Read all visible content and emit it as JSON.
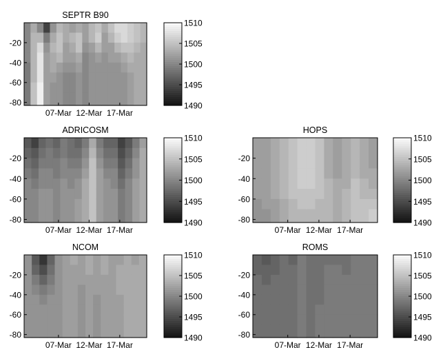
{
  "chart_data": [
    {
      "type": "heatmap",
      "title": "SEPTR B90",
      "xlabel": "",
      "ylabel": "",
      "x_ticks": [
        "07-Mar",
        "12-Mar",
        "17-Mar"
      ],
      "y_ticks": [
        -20,
        -40,
        -60,
        -80
      ],
      "ylim": [
        -83,
        0
      ],
      "colorbar": {
        "min": 1490,
        "max": 1510,
        "ticks": [
          1510,
          1505,
          1500,
          1495,
          1490
        ]
      },
      "depth_levels": [
        -5,
        -15,
        -25,
        -35,
        -45,
        -55,
        -65,
        -75
      ],
      "columns": [
        [
          1500,
          1500,
          1500,
          1500,
          1499,
          1499,
          1499,
          1499
        ],
        [
          1503,
          1504,
          1504,
          1504,
          1504,
          1504,
          1505,
          1505
        ],
        [
          1500,
          1504,
          1507,
          1508,
          1508,
          1508,
          1509,
          1509
        ],
        [
          1494,
          1499,
          1501,
          1502,
          1502,
          1502,
          1502,
          1502
        ],
        [
          1501,
          1503,
          1504,
          1503,
          1503,
          1502,
          1501,
          1501
        ],
        [
          1504,
          1505,
          1505,
          1504,
          1502,
          1501,
          1501,
          1501
        ],
        [
          1503,
          1503,
          1502,
          1502,
          1501,
          1500,
          1500,
          1500
        ],
        [
          1502,
          1504,
          1503,
          1502,
          1501,
          1500,
          1500,
          1500
        ],
        [
          1503,
          1505,
          1505,
          1503,
          1502,
          1501,
          1501,
          1501
        ],
        [
          1502,
          1502,
          1501,
          1500,
          1500,
          1500,
          1500,
          1500
        ],
        [
          1504,
          1504,
          1502,
          1501,
          1501,
          1501,
          1501,
          1501
        ],
        [
          1505,
          1506,
          1504,
          1502,
          1501,
          1501,
          1501,
          1501
        ],
        [
          1503,
          1502,
          1502,
          1501,
          1501,
          1501,
          1501,
          1501
        ],
        [
          1505,
          1504,
          1502,
          1502,
          1501,
          1501,
          1501,
          1501
        ],
        [
          1507,
          1506,
          1504,
          1502,
          1501,
          1501,
          1501,
          1501
        ],
        [
          1507,
          1507,
          1505,
          1503,
          1502,
          1501,
          1501,
          1501
        ],
        [
          1506,
          1506,
          1505,
          1504,
          1503,
          1502,
          1502,
          1502
        ],
        [
          1505,
          1505,
          1504,
          1503,
          1503,
          1503,
          1503,
          1503
        ],
        [
          1504,
          1504,
          1503,
          1503,
          1503,
          1503,
          1503,
          1503
        ]
      ]
    },
    {
      "type": "heatmap",
      "title": "ADRICOSM",
      "xlabel": "",
      "ylabel": "",
      "x_ticks": [
        "07-Mar",
        "12-Mar",
        "17-Mar"
      ],
      "y_ticks": [
        -20,
        -40,
        -60,
        -80
      ],
      "ylim": [
        -83,
        0
      ],
      "colorbar": {
        "min": 1490,
        "max": 1510,
        "ticks": [
          1510,
          1505,
          1500,
          1495,
          1490
        ]
      },
      "depth_levels": [
        -5,
        -15,
        -25,
        -35,
        -45,
        -55,
        -65,
        -75
      ],
      "columns": [
        [
          1496,
          1497,
          1498,
          1499,
          1500,
          1500,
          1500,
          1500
        ],
        [
          1494,
          1496,
          1497,
          1498,
          1499,
          1500,
          1500,
          1500
        ],
        [
          1497,
          1498,
          1499,
          1500,
          1500,
          1501,
          1501,
          1501
        ],
        [
          1498,
          1499,
          1499,
          1500,
          1500,
          1501,
          1501,
          1501
        ],
        [
          1497,
          1498,
          1499,
          1499,
          1500,
          1500,
          1500,
          1500
        ],
        [
          1499,
          1499,
          1500,
          1500,
          1501,
          1501,
          1501,
          1501
        ],
        [
          1498,
          1498,
          1499,
          1500,
          1500,
          1501,
          1501,
          1501
        ],
        [
          1497,
          1498,
          1499,
          1500,
          1501,
          1501,
          1502,
          1502
        ],
        [
          1499,
          1500,
          1501,
          1502,
          1503,
          1503,
          1503,
          1503
        ],
        [
          1503,
          1504,
          1505,
          1505,
          1505,
          1505,
          1505,
          1505
        ],
        [
          1499,
          1500,
          1501,
          1502,
          1502,
          1502,
          1502,
          1502
        ],
        [
          1497,
          1498,
          1499,
          1500,
          1501,
          1501,
          1501,
          1501
        ],
        [
          1497,
          1498,
          1499,
          1500,
          1500,
          1501,
          1501,
          1501
        ],
        [
          1494,
          1495,
          1496,
          1497,
          1498,
          1499,
          1499,
          1499
        ],
        [
          1496,
          1497,
          1498,
          1499,
          1500,
          1500,
          1500,
          1500
        ],
        [
          1499,
          1500,
          1501,
          1501,
          1502,
          1502,
          1502,
          1502
        ],
        [
          1502,
          1503,
          1503,
          1503,
          1503,
          1503,
          1503,
          1503
        ]
      ]
    },
    {
      "type": "heatmap",
      "title": "HOPS",
      "xlabel": "",
      "ylabel": "",
      "x_ticks": [
        "07-Mar",
        "12-Mar",
        "17-Mar"
      ],
      "y_ticks": [
        -20,
        -40,
        -60,
        -80
      ],
      "ylim": [
        -83,
        0
      ],
      "colorbar": {
        "min": 1490,
        "max": 1510,
        "ticks": [
          1510,
          1505,
          1500,
          1495,
          1490
        ]
      },
      "depth_levels": [
        -5,
        -15,
        -25,
        -35,
        -45,
        -55,
        -65,
        -75
      ],
      "columns": [
        [
          1502,
          1502,
          1502,
          1502,
          1502,
          1502,
          1501,
          1501
        ],
        [
          1502,
          1502,
          1502,
          1502,
          1502,
          1502,
          1502,
          1501
        ],
        [
          1503,
          1503,
          1503,
          1503,
          1503,
          1503,
          1502,
          1502
        ],
        [
          1504,
          1504,
          1504,
          1504,
          1504,
          1504,
          1503,
          1503
        ],
        [
          1505,
          1505,
          1505,
          1505,
          1505,
          1505,
          1504,
          1504
        ],
        [
          1506,
          1506,
          1506,
          1506,
          1506,
          1505,
          1505,
          1504
        ],
        [
          1506,
          1506,
          1506,
          1506,
          1506,
          1505,
          1505,
          1504
        ],
        [
          1505,
          1505,
          1505,
          1505,
          1505,
          1505,
          1504,
          1504
        ],
        [
          1503,
          1503,
          1503,
          1503,
          1504,
          1504,
          1504,
          1504
        ],
        [
          1502,
          1502,
          1502,
          1502,
          1503,
          1503,
          1503,
          1503
        ],
        [
          1503,
          1503,
          1503,
          1503,
          1503,
          1504,
          1504,
          1504
        ],
        [
          1504,
          1504,
          1504,
          1504,
          1505,
          1505,
          1505,
          1505
        ],
        [
          1503,
          1503,
          1503,
          1503,
          1504,
          1504,
          1505,
          1505
        ],
        [
          1502,
          1502,
          1502,
          1503,
          1503,
          1504,
          1505,
          1506
        ]
      ]
    },
    {
      "type": "heatmap",
      "title": "NCOM",
      "xlabel": "",
      "ylabel": "",
      "x_ticks": [
        "07-Mar",
        "12-Mar",
        "17-Mar"
      ],
      "y_ticks": [
        -20,
        -40,
        -60,
        -80
      ],
      "ylim": [
        -83,
        0
      ],
      "colorbar": {
        "min": 1490,
        "max": 1510,
        "ticks": [
          1510,
          1505,
          1500,
          1495,
          1490
        ]
      },
      "depth_levels": [
        -5,
        -15,
        -25,
        -35,
        -45,
        -55,
        -65,
        -75
      ],
      "columns": [
        [
          1501,
          1501,
          1501,
          1501,
          1501,
          1501,
          1501,
          1501
        ],
        [
          1496,
          1497,
          1499,
          1500,
          1501,
          1501,
          1501,
          1501
        ],
        [
          1493,
          1495,
          1497,
          1499,
          1500,
          1501,
          1501,
          1501
        ],
        [
          1497,
          1498,
          1499,
          1500,
          1501,
          1501,
          1501,
          1501
        ],
        [
          1501,
          1501,
          1501,
          1501,
          1501,
          1501,
          1501,
          1501
        ],
        [
          1502,
          1502,
          1502,
          1502,
          1502,
          1502,
          1502,
          1502
        ],
        [
          1503,
          1502,
          1502,
          1502,
          1502,
          1502,
          1502,
          1502
        ],
        [
          1502,
          1502,
          1502,
          1501,
          1501,
          1501,
          1501,
          1501
        ],
        [
          1503,
          1503,
          1502,
          1502,
          1502,
          1502,
          1502,
          1502
        ],
        [
          1502,
          1502,
          1502,
          1502,
          1501,
          1501,
          1501,
          1501
        ],
        [
          1503,
          1503,
          1502,
          1502,
          1502,
          1502,
          1502,
          1502
        ],
        [
          1502,
          1502,
          1502,
          1502,
          1502,
          1502,
          1502,
          1502
        ],
        [
          1502,
          1503,
          1503,
          1503,
          1502,
          1502,
          1502,
          1502
        ],
        [
          1503,
          1503,
          1503,
          1503,
          1503,
          1503,
          1503,
          1503
        ],
        [
          1502,
          1503,
          1503,
          1503,
          1503,
          1503,
          1503,
          1503
        ],
        [
          1503,
          1503,
          1503,
          1503,
          1503,
          1503,
          1503,
          1503
        ]
      ]
    },
    {
      "type": "heatmap",
      "title": "ROMS",
      "xlabel": "",
      "ylabel": "",
      "x_ticks": [
        "07-Mar",
        "12-Mar",
        "17-Mar"
      ],
      "y_ticks": [
        -20,
        -40,
        -60,
        -80
      ],
      "ylim": [
        -83,
        0
      ],
      "colorbar": {
        "min": 1490,
        "max": 1510,
        "ticks": [
          1510,
          1505,
          1500,
          1495,
          1490
        ]
      },
      "depth_levels": [
        -5,
        -15,
        -25,
        -35,
        -45,
        -55,
        -65,
        -75
      ],
      "columns": [
        [
          1497,
          1497,
          1498,
          1498,
          1498,
          1498,
          1498,
          1498
        ],
        [
          1496,
          1497,
          1497,
          1498,
          1498,
          1498,
          1498,
          1498
        ],
        [
          1497,
          1497,
          1498,
          1498,
          1498,
          1498,
          1498,
          1498
        ],
        [
          1498,
          1498,
          1498,
          1498,
          1498,
          1498,
          1498,
          1498
        ],
        [
          1497,
          1498,
          1498,
          1498,
          1498,
          1498,
          1498,
          1498
        ],
        [
          1499,
          1499,
          1499,
          1499,
          1499,
          1499,
          1499,
          1499
        ],
        [
          1498,
          1498,
          1498,
          1498,
          1498,
          1498,
          1498,
          1498
        ],
        [
          1498,
          1498,
          1498,
          1498,
          1498,
          1499,
          1499,
          1499
        ],
        [
          1498,
          1499,
          1499,
          1499,
          1499,
          1499,
          1499,
          1499
        ],
        [
          1498,
          1499,
          1499,
          1499,
          1499,
          1499,
          1499,
          1499
        ],
        [
          1498,
          1498,
          1499,
          1499,
          1499,
          1499,
          1499,
          1499
        ],
        [
          1499,
          1499,
          1499,
          1499,
          1499,
          1499,
          1499,
          1499
        ],
        [
          1499,
          1499,
          1499,
          1499,
          1499,
          1499,
          1499,
          1499
        ],
        [
          1499,
          1499,
          1499,
          1499,
          1499,
          1499,
          1499,
          1499
        ]
      ]
    }
  ]
}
